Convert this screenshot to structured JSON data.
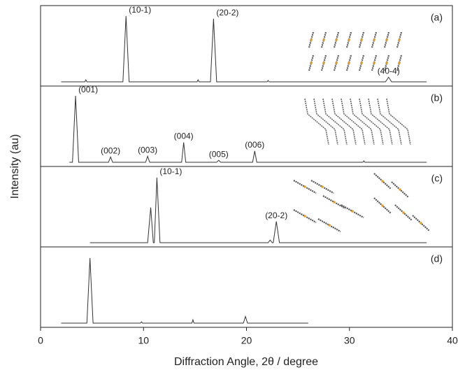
{
  "chart_data": {
    "type": "line",
    "xlabel": "Diffraction Angle, 2θ / degree",
    "ylabel": "Intensity (au)",
    "xlim": [
      0,
      40
    ],
    "xticks": [
      0,
      10,
      20,
      30,
      40
    ],
    "color": "#333333",
    "panels": [
      {
        "label": "(a)",
        "ylim": [
          0,
          100
        ],
        "x": [
          2,
          4.3,
          4.4,
          4.5,
          8.0,
          8.3,
          8.6,
          15.2,
          15.3,
          15.4,
          16.5,
          16.8,
          17.1,
          22.0,
          22.1,
          22.2,
          33.5,
          33.8,
          34.1,
          37.5
        ],
        "values": [
          0,
          0,
          3,
          0,
          0,
          99,
          0,
          0,
          3,
          0,
          0,
          95,
          0,
          0,
          2,
          0,
          0,
          7,
          0,
          0
        ],
        "annotations": [
          {
            "text": "(10-1)",
            "x": 8.3
          },
          {
            "text": "(20-2)",
            "x": 16.8
          },
          {
            "text": "(40-4)",
            "x": 33.8
          }
        ]
      },
      {
        "label": "(b)",
        "ylim": [
          0,
          100
        ],
        "x": [
          2.8,
          3.1,
          3.4,
          3.7,
          6.6,
          6.8,
          7.0,
          10.2,
          10.4,
          10.6,
          13.7,
          13.9,
          14.1,
          17.1,
          17.3,
          17.5,
          20.6,
          20.8,
          21.0,
          31.3,
          31.4,
          31.5,
          37.5
        ],
        "values": [
          0,
          0,
          100,
          0,
          0,
          8,
          0,
          0,
          9,
          0,
          0,
          30,
          0,
          0,
          3,
          0,
          0,
          17,
          0,
          0,
          2,
          0,
          0
        ],
        "annotations": [
          {
            "text": "(001)",
            "x": 3.4
          },
          {
            "text": "(002)",
            "x": 6.8
          },
          {
            "text": "(003)",
            "x": 10.4
          },
          {
            "text": "(004)",
            "x": 13.9
          },
          {
            "text": "(005)",
            "x": 17.3
          },
          {
            "text": "(006)",
            "x": 20.8
          }
        ]
      },
      {
        "label": "(c)",
        "ylim": [
          0,
          100
        ],
        "x": [
          4.8,
          10.4,
          10.7,
          10.95,
          11.05,
          11.3,
          11.6,
          22.1,
          22.3,
          22.5,
          22.6,
          22.9,
          23.2,
          37.5
        ],
        "values": [
          0,
          0,
          53,
          0,
          0,
          98,
          0,
          0,
          4,
          0,
          0,
          32,
          0,
          0
        ],
        "annotations": [
          {
            "text": "(10-1)",
            "x": 11.3
          },
          {
            "text": "(20-2)",
            "x": 22.9
          }
        ]
      },
      {
        "label": "(d)",
        "ylim": [
          0,
          100
        ],
        "x": [
          2,
          4.5,
          4.8,
          5.1,
          9.7,
          9.8,
          9.9,
          14.7,
          14.8,
          14.9,
          19.7,
          19.9,
          20.1,
          26
        ],
        "values": [
          0,
          0,
          98,
          0,
          0,
          2,
          0,
          0,
          5,
          0,
          0,
          10,
          0,
          0
        ],
        "annotations": []
      }
    ]
  }
}
